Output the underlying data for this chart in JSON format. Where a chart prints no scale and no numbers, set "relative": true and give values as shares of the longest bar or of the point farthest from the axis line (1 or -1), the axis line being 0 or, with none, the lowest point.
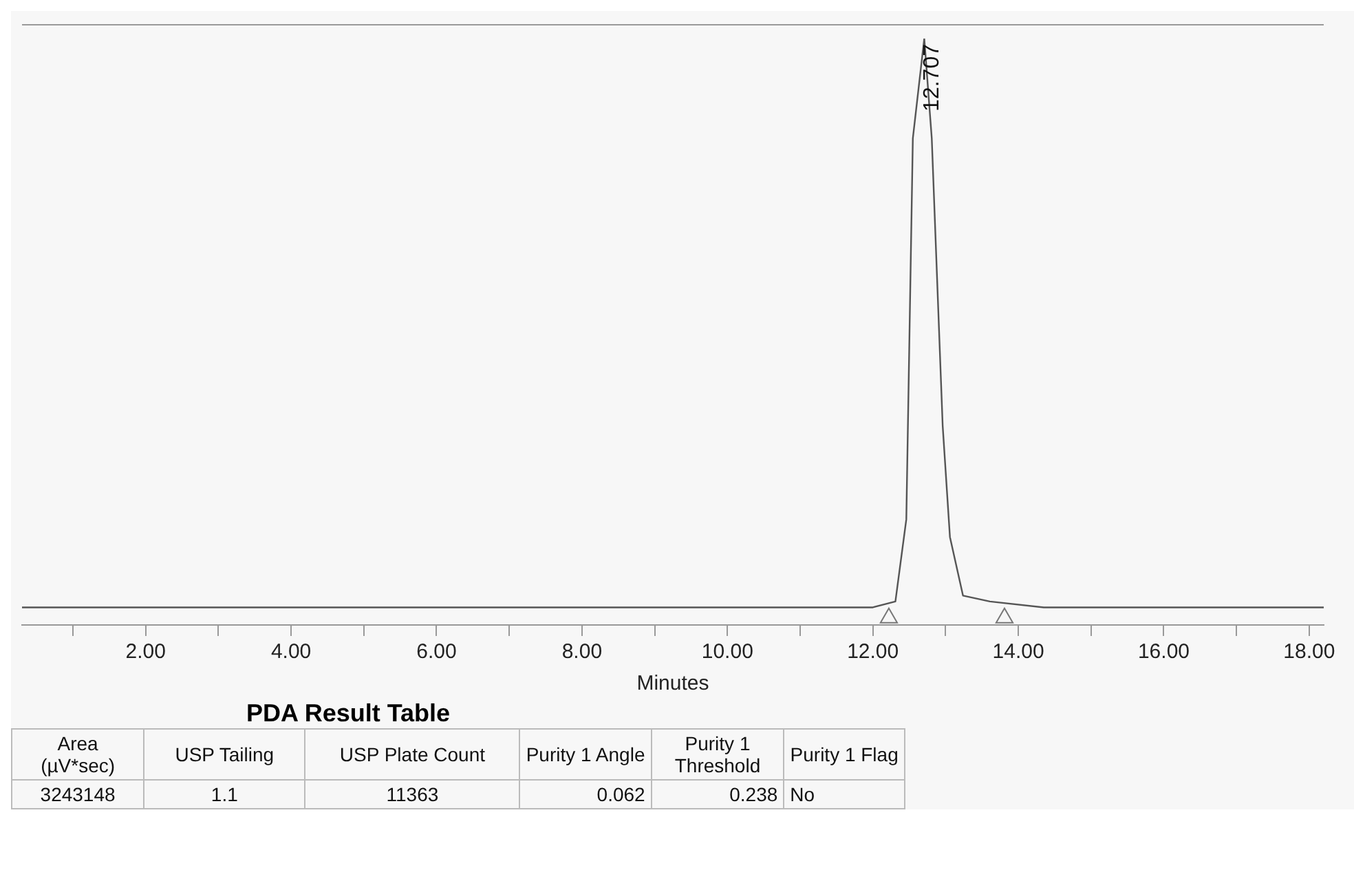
{
  "chart_data": {
    "type": "line",
    "relative": true,
    "xlabel": "Minutes",
    "xlim": [
      0.3,
      18.2
    ],
    "xticks": [
      {
        "value": 1,
        "label": null
      },
      {
        "value": 2,
        "label": "2.00"
      },
      {
        "value": 3,
        "label": null
      },
      {
        "value": 4,
        "label": "4.00"
      },
      {
        "value": 5,
        "label": null
      },
      {
        "value": 6,
        "label": "6.00"
      },
      {
        "value": 7,
        "label": null
      },
      {
        "value": 8,
        "label": "8.00"
      },
      {
        "value": 9,
        "label": null
      },
      {
        "value": 10,
        "label": "10.00"
      },
      {
        "value": 11,
        "label": null
      },
      {
        "value": 12,
        "label": "12.00"
      },
      {
        "value": 13,
        "label": null
      },
      {
        "value": 14,
        "label": "14.00"
      },
      {
        "value": 15,
        "label": null
      },
      {
        "value": 16,
        "label": "16.00"
      },
      {
        "value": 17,
        "label": null
      },
      {
        "value": 18,
        "label": "18.00"
      }
    ],
    "series": [
      {
        "color": "#555555",
        "marker": "none",
        "x": [
          0.3,
          12.0,
          12.31,
          12.46,
          12.55,
          12.707,
          12.81,
          12.96,
          13.06,
          13.24,
          13.61,
          14.35,
          18.2
        ],
        "values": [
          0.03,
          0.03,
          0.04,
          0.18,
          0.83,
          1,
          0.83,
          0.34,
          0.15,
          0.05,
          0.04,
          0.03,
          0.03
        ]
      },
      {
        "type": "scatter",
        "color": "#777777",
        "marker": "triangle",
        "x": [
          12.22,
          13.81
        ],
        "values": [
          0.012,
          0.012
        ]
      }
    ],
    "annotations": [
      {
        "text": "12.707",
        "x": 12.707,
        "y": 1
      },
      "PDA Result Table",
      "Area (µV*sec)",
      "USP Tailing",
      "USP Plate Count",
      "Purity 1 Angle",
      "Purity 1 Threshold",
      "Purity 1 Flag",
      "3243148",
      "1.1",
      "11363",
      "0.062",
      "0.238",
      "No"
    ],
    "legend": false,
    "grid": false
  }
}
